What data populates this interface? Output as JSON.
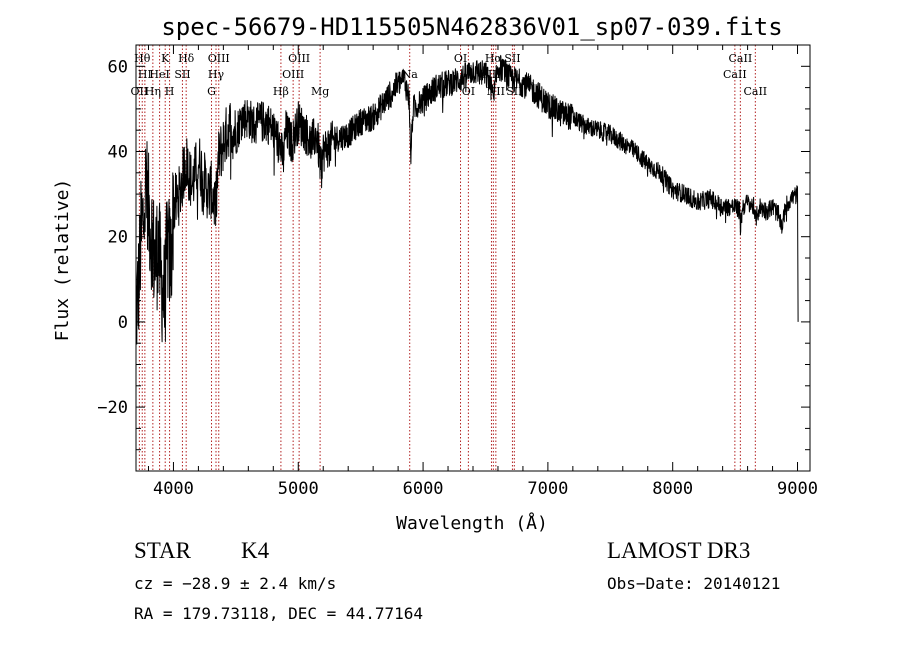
{
  "chart_data": {
    "type": "line",
    "title": "spec-56679-HD115505N462836V01_sp07-039.fits",
    "xlabel": "Wavelength (Å)",
    "ylabel": "Flux (relative)",
    "xlim": [
      3700,
      9100
    ],
    "ylim": [
      -35,
      65
    ],
    "xticks": [
      4000,
      5000,
      6000,
      7000,
      8000,
      9000
    ],
    "yticks": [
      -20,
      0,
      20,
      40,
      60
    ],
    "grid": false,
    "line_color": "#000000",
    "marker_color": "#b22222",
    "anchors": [
      [
        3700,
        2
      ],
      [
        3720,
        8
      ],
      [
        3740,
        20
      ],
      [
        3760,
        24
      ],
      [
        3780,
        32
      ],
      [
        3800,
        26
      ],
      [
        3830,
        20
      ],
      [
        3850,
        14
      ],
      [
        3880,
        18
      ],
      [
        3900,
        10
      ],
      [
        3930,
        5
      ],
      [
        3950,
        18
      ],
      [
        3980,
        14
      ],
      [
        4000,
        27
      ],
      [
        4050,
        30
      ],
      [
        4100,
        38
      ],
      [
        4150,
        32
      ],
      [
        4200,
        38
      ],
      [
        4250,
        33
      ],
      [
        4280,
        30
      ],
      [
        4300,
        31
      ],
      [
        4340,
        27
      ],
      [
        4360,
        38
      ],
      [
        4400,
        42
      ],
      [
        4450,
        46
      ],
      [
        4500,
        44
      ],
      [
        4550,
        48
      ],
      [
        4600,
        48
      ],
      [
        4650,
        46
      ],
      [
        4700,
        47
      ],
      [
        4750,
        47
      ],
      [
        4800,
        45
      ],
      [
        4850,
        42
      ],
      [
        4880,
        38
      ],
      [
        4900,
        45
      ],
      [
        4950,
        42
      ],
      [
        5000,
        47
      ],
      [
        5050,
        45
      ],
      [
        5100,
        42
      ],
      [
        5150,
        44
      ],
      [
        5180,
        36
      ],
      [
        5200,
        40
      ],
      [
        5300,
        43
      ],
      [
        5400,
        44
      ],
      [
        5500,
        47
      ],
      [
        5600,
        48
      ],
      [
        5700,
        52
      ],
      [
        5800,
        56
      ],
      [
        5850,
        57
      ],
      [
        5890,
        52
      ],
      [
        5900,
        38
      ],
      [
        5920,
        50
      ],
      [
        6000,
        52
      ],
      [
        6100,
        55
      ],
      [
        6200,
        56
      ],
      [
        6300,
        57
      ],
      [
        6350,
        58
      ],
      [
        6400,
        59
      ],
      [
        6500,
        58
      ],
      [
        6540,
        56
      ],
      [
        6563,
        52
      ],
      [
        6600,
        60
      ],
      [
        6650,
        59
      ],
      [
        6700,
        57
      ],
      [
        6800,
        56
      ],
      [
        6900,
        54
      ],
      [
        7000,
        51
      ],
      [
        7100,
        49
      ],
      [
        7200,
        48
      ],
      [
        7300,
        46
      ],
      [
        7400,
        45
      ],
      [
        7500,
        44
      ],
      [
        7600,
        42
      ],
      [
        7700,
        40
      ],
      [
        7800,
        37
      ],
      [
        7900,
        35
      ],
      [
        8000,
        31
      ],
      [
        8100,
        30
      ],
      [
        8200,
        28
      ],
      [
        8300,
        29
      ],
      [
        8400,
        27
      ],
      [
        8500,
        27
      ],
      [
        8540,
        26
      ],
      [
        8542,
        22
      ],
      [
        8560,
        27
      ],
      [
        8600,
        28
      ],
      [
        8650,
        27
      ],
      [
        8662,
        24
      ],
      [
        8700,
        27
      ],
      [
        8750,
        26
      ],
      [
        8800,
        27
      ],
      [
        8850,
        25
      ],
      [
        8880,
        22
      ],
      [
        8900,
        27
      ],
      [
        8950,
        29
      ],
      [
        9000,
        30
      ],
      [
        9005,
        0
      ]
    ],
    "lines": [
      {
        "name": "OII",
        "x": 3727,
        "row": 3
      },
      {
        "name": "Hθ",
        "x": 3750,
        "row": 1
      },
      {
        "name": "HI",
        "x": 3771,
        "row": 2
      },
      {
        "name": "Hη",
        "x": 3835,
        "row": 3
      },
      {
        "name": "HeI",
        "x": 3889,
        "row": 2
      },
      {
        "name": "K",
        "x": 3934,
        "row": 1
      },
      {
        "name": "H",
        "x": 3969,
        "row": 3
      },
      {
        "name": "SII",
        "x": 4072,
        "row": 2
      },
      {
        "name": "Hδ",
        "x": 4102,
        "row": 1
      },
      {
        "name": "G",
        "x": 4305,
        "row": 3
      },
      {
        "name": "Hγ",
        "x": 4341,
        "row": 2
      },
      {
        "name": "OIII",
        "x": 4363,
        "row": 1
      },
      {
        "name": "Hβ",
        "x": 4861,
        "row": 3
      },
      {
        "name": "OIII",
        "x": 4959,
        "row": 2
      },
      {
        "name": "OIII",
        "x": 5007,
        "row": 1
      },
      {
        "name": "Mg",
        "x": 5175,
        "row": 3
      },
      {
        "name": "Na",
        "x": 5893,
        "row": 2
      },
      {
        "name": "OI",
        "x": 6300,
        "row": 1
      },
      {
        "name": "OI",
        "x": 6363,
        "row": 3
      },
      {
        "name": "NII",
        "x": 6548,
        "row": 2
      },
      {
        "name": "Hα",
        "x": 6563,
        "row": 1
      },
      {
        "name": "NII",
        "x": 6583,
        "row": 3
      },
      {
        "name": "SII",
        "x": 6716,
        "row": 1
      },
      {
        "name": "SII",
        "x": 6731,
        "row": 3
      },
      {
        "name": "CaII",
        "x": 8498,
        "row": 2
      },
      {
        "name": "CaII",
        "x": 8542,
        "row": 1
      },
      {
        "name": "CaII",
        "x": 8662,
        "row": 3
      }
    ]
  },
  "info": {
    "class_label": "STAR",
    "subclass": "K4",
    "survey": "LAMOST DR3",
    "cz": "cz = −28.9 ± 2.4 km/s",
    "obs_date": "Obs−Date: 20140121",
    "coords": "RA = 179.73118, DEC =  44.77164"
  }
}
